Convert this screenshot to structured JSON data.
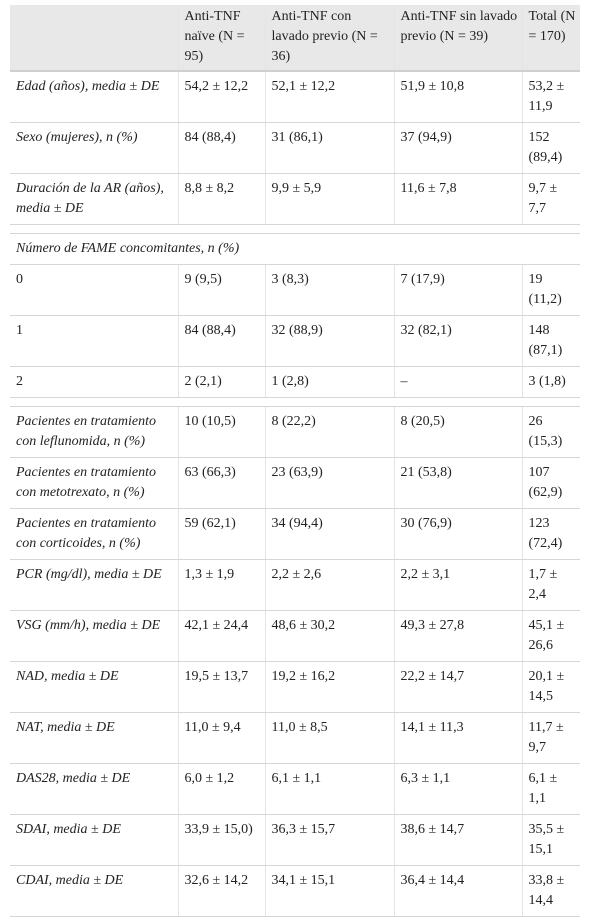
{
  "table": {
    "header": [
      "Anti-TNF naïve (N = 95)",
      "Anti-TNF con lavado previo (N = 36)",
      "Anti-TNF sin lavado previo (N = 39)",
      "Total (N = 170)"
    ],
    "rows": [
      [
        "Edad (años), media ± DE",
        "54,2 ± 12,2",
        "52,1 ± 12,2",
        "51,9 ± 10,8",
        "53,2 ± 11,9"
      ],
      [
        "Sexo (mujeres), n (%)",
        "84 (88,4)",
        "31 (86,1)",
        "37 (94,9)",
        "152 (89,4)"
      ],
      [
        "Duración de la AR (años), media ± DE",
        "8,8 ± 8,2",
        "9,9 ± 5,9",
        "11,6 ± 7,8",
        "9,7 ± 7,7"
      ],
      [
        "Número de FAME concomitantes, n (%)"
      ],
      [
        "0",
        "9 (9,5)",
        "3 (8,3)",
        "7 (17,9)",
        "19 (11,2)"
      ],
      [
        "1",
        "84 (88,4)",
        "32 (88,9)",
        "32 (82,1)",
        "148 (87,1)"
      ],
      [
        "2",
        "2 (2,1)",
        "1 (2,8)",
        "–",
        "3 (1,8)"
      ],
      [
        "Pacientes en tratamiento con leflunomida, n (%)",
        "10 (10,5)",
        "8 (22,2)",
        "8 (20,5)",
        "26 (15,3)"
      ],
      [
        "Pacientes en tratamiento con metotrexato, n (%)",
        "63 (66,3)",
        "23 (63,9)",
        "21 (53,8)",
        "107 (62,9)"
      ],
      [
        "Pacientes en tratamiento con corticoides, n (%)",
        "59 (62,1)",
        "34 (94,4)",
        "30 (76,9)",
        "123 (72,4)"
      ],
      [
        "PCR (mg/dl), media ± DE",
        "1,3 ± 1,9",
        "2,2 ± 2,6",
        "2,2 ± 3,1",
        "1,7 ± 2,4"
      ],
      [
        "VSG (mm/h), media ± DE",
        "42,1 ± 24,4",
        "48,6 ± 30,2",
        "49,3 ± 27,8",
        "45,1 ± 26,6"
      ],
      [
        "NAD, media ± DE",
        "19,5 ± 13,7",
        "19,2 ± 16,2",
        "22,2 ± 14,7",
        "20,1 ± 14,5"
      ],
      [
        "NAT, media ± DE",
        "11,0 ± 9,4",
        "11,0 ± 8,5",
        "14,1 ± 11,3",
        "11,7 ± 9,7"
      ],
      [
        "DAS28, media ± DE",
        "6,0 ± 1,2",
        "6,1 ± 1,1",
        "6,3 ± 1,1",
        "6,1 ± 1,1"
      ],
      [
        "SDAI, media ± DE",
        "33,9 ± 15,0)",
        "36,3 ± 15,7",
        "38,6 ± 14,7",
        "35,5 ± 15,1"
      ],
      [
        "CDAI, media ± DE",
        "32,6 ± 14,2",
        "34,1 ± 15,1",
        "36,4 ± 14,4",
        "33,8 ± 14,4"
      ]
    ]
  }
}
